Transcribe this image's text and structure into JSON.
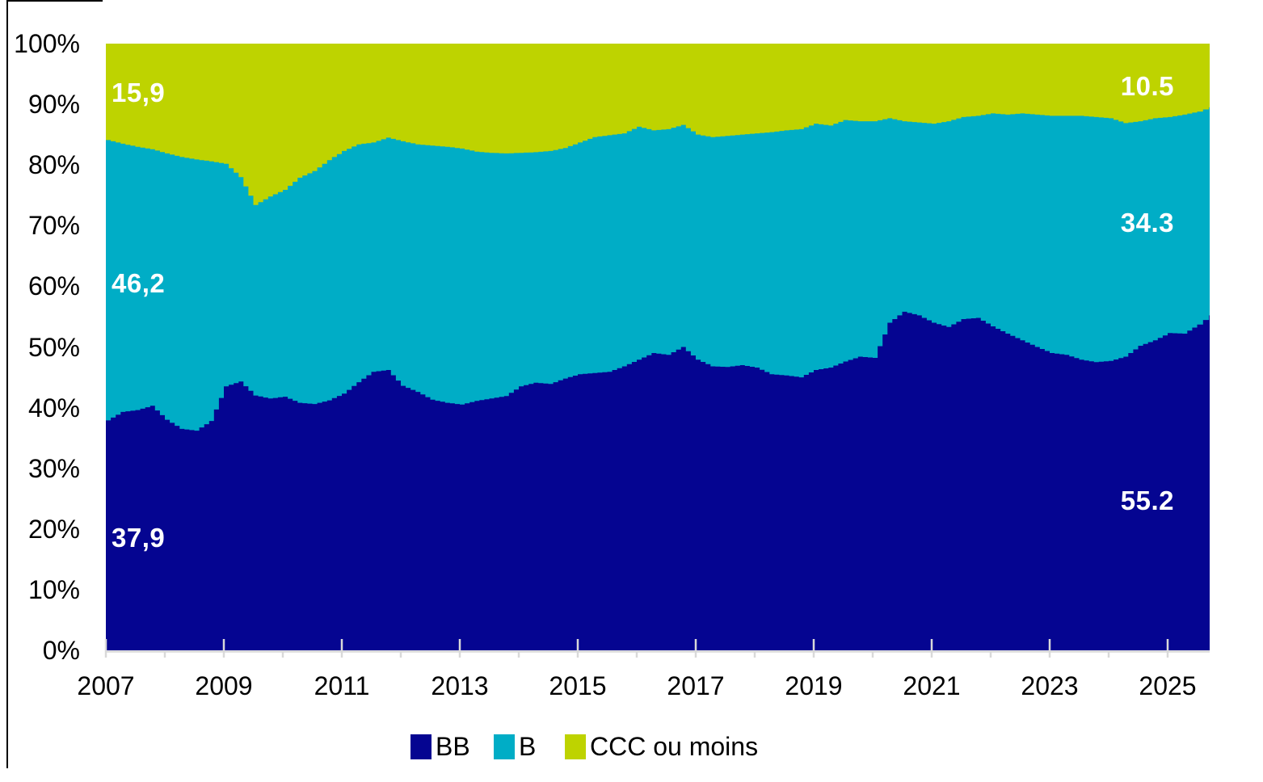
{
  "figure": {
    "background": "#FFFFFF",
    "border_color": "#000000",
    "axis_line_color": "#D9D9D9",
    "text_color": "#000000",
    "value_label_color": "#FFFFFF"
  },
  "chart_data": {
    "type": "area",
    "variant": "100-percent-stacked-step-area",
    "title": "",
    "xlabel": "",
    "ylabel": "",
    "grid": "off",
    "x_range": [
      2007,
      2025.7
    ],
    "ylim": [
      0,
      100
    ],
    "x_axis": {
      "tick_years": [
        2007,
        2008,
        2009,
        2010,
        2011,
        2012,
        2013,
        2014,
        2015,
        2016,
        2017,
        2018,
        2019,
        2020,
        2021,
        2022,
        2023,
        2024,
        2025
      ],
      "labeled_years": [
        2007,
        2009,
        2011,
        2013,
        2015,
        2017,
        2019,
        2021,
        2023,
        2025
      ],
      "tick_labels": [
        "2007",
        "2009",
        "2011",
        "2013",
        "2015",
        "2017",
        "2019",
        "2021",
        "2023",
        "2025"
      ]
    },
    "y_axis": {
      "tick_labels": [
        "0%",
        "10%",
        "20%",
        "30%",
        "40%",
        "50%",
        "60%",
        "70%",
        "80%",
        "90%",
        "100%"
      ],
      "tick_values": [
        0,
        10,
        20,
        30,
        40,
        50,
        60,
        70,
        80,
        90,
        100
      ]
    },
    "legend": {
      "position": "bottom",
      "entries": [
        {
          "label": "BB",
          "color": "#050591"
        },
        {
          "label": "B",
          "color": "#00ADC6"
        },
        {
          "label": "CCC ou moins",
          "color": "#BED300"
        }
      ]
    },
    "annotations": {
      "left": [
        {
          "text": "15,9",
          "series": "CCC ou moins"
        },
        {
          "text": "46,2",
          "series": "B"
        },
        {
          "text": "37,9",
          "series": "BB"
        }
      ],
      "right": [
        {
          "text": "10.5",
          "series": "CCC ou moins"
        },
        {
          "text": "34.3",
          "series": "B"
        },
        {
          "text": "55.2",
          "series": "BB"
        }
      ]
    },
    "x": [
      2007.0,
      2007.25,
      2007.5,
      2007.75,
      2008.0,
      2008.25,
      2008.5,
      2008.75,
      2009.0,
      2009.25,
      2009.5,
      2009.75,
      2010.0,
      2010.25,
      2010.5,
      2010.75,
      2011.0,
      2011.25,
      2011.5,
      2011.75,
      2012.0,
      2012.25,
      2012.5,
      2012.75,
      2013.0,
      2013.25,
      2013.5,
      2013.75,
      2014.0,
      2014.25,
      2014.5,
      2014.75,
      2015.0,
      2015.25,
      2015.5,
      2015.75,
      2016.0,
      2016.25,
      2016.5,
      2016.75,
      2017.0,
      2017.25,
      2017.5,
      2017.75,
      2018.0,
      2018.25,
      2018.5,
      2018.75,
      2019.0,
      2019.25,
      2019.5,
      2019.75,
      2020.0,
      2020.25,
      2020.5,
      2020.75,
      2021.0,
      2021.25,
      2021.5,
      2021.75,
      2022.0,
      2022.25,
      2022.5,
      2022.75,
      2023.0,
      2023.25,
      2023.5,
      2023.75,
      2024.0,
      2024.25,
      2024.5,
      2024.75,
      2025.0,
      2025.25,
      2025.5,
      2025.7
    ],
    "series": [
      {
        "name": "BB",
        "color": "#050591",
        "values": [
          37.9,
          39.3,
          39.6,
          40.3,
          38.0,
          36.5,
          36.2,
          37.8,
          43.5,
          44.3,
          42.0,
          41.5,
          41.8,
          40.8,
          40.6,
          41.2,
          42.3,
          44.2,
          45.9,
          46.2,
          43.6,
          42.6,
          41.3,
          40.8,
          40.5,
          41.1,
          41.5,
          41.9,
          43.5,
          44.1,
          43.9,
          44.8,
          45.5,
          45.7,
          45.9,
          46.8,
          47.9,
          49.0,
          48.7,
          50.0,
          47.9,
          46.8,
          46.7,
          47.0,
          46.6,
          45.5,
          45.3,
          45.0,
          46.2,
          46.6,
          47.6,
          48.4,
          48.2,
          54.0,
          55.8,
          55.2,
          54.0,
          53.3,
          54.6,
          54.8,
          53.4,
          52.2,
          51.1,
          50.0,
          49.0,
          48.7,
          47.9,
          47.5,
          47.7,
          48.4,
          50.2,
          51.1,
          52.3,
          52.2,
          53.7,
          55.2
        ]
      },
      {
        "name": "B",
        "color": "#00ADC6",
        "values": [
          46.2,
          44.2,
          43.4,
          42.3,
          43.9,
          44.8,
          44.7,
          42.8,
          36.7,
          33.7,
          31.4,
          33.3,
          34.1,
          37.1,
          38.4,
          39.6,
          40.0,
          39.2,
          37.8,
          38.3,
          40.3,
          40.8,
          41.9,
          42.2,
          42.2,
          41.1,
          40.5,
          40.0,
          38.5,
          38.0,
          38.4,
          38.0,
          38.2,
          38.9,
          39.0,
          38.4,
          38.4,
          36.7,
          37.2,
          36.6,
          37.1,
          37.8,
          38.1,
          38.0,
          38.6,
          39.9,
          40.4,
          40.9,
          40.6,
          39.9,
          39.8,
          38.8,
          39.0,
          33.7,
          31.4,
          31.8,
          32.8,
          33.9,
          33.3,
          33.3,
          35.1,
          36.1,
          37.4,
          38.3,
          39.1,
          39.4,
          40.2,
          40.4,
          40.0,
          38.5,
          37.0,
          36.6,
          35.6,
          36.1,
          35.1,
          34.3
        ]
      },
      {
        "name": "CCC ou moins",
        "color": "#BED300",
        "values": [
          15.9,
          16.5,
          17.0,
          17.4,
          18.1,
          18.7,
          19.1,
          19.4,
          19.8,
          22.0,
          26.6,
          25.2,
          24.1,
          22.1,
          21.0,
          19.2,
          17.7,
          16.6,
          16.3,
          15.5,
          16.1,
          16.6,
          16.8,
          17.0,
          17.3,
          17.8,
          18.0,
          18.1,
          18.0,
          17.9,
          17.7,
          17.2,
          16.3,
          15.4,
          15.1,
          14.8,
          13.7,
          14.3,
          14.1,
          13.4,
          15.0,
          15.4,
          15.2,
          15.0,
          14.8,
          14.6,
          14.3,
          14.1,
          13.2,
          13.5,
          12.6,
          12.8,
          12.8,
          12.3,
          12.8,
          13.0,
          13.2,
          12.8,
          12.1,
          11.9,
          11.5,
          11.7,
          11.5,
          11.7,
          11.9,
          11.9,
          11.9,
          12.1,
          12.3,
          13.1,
          12.8,
          12.3,
          12.1,
          11.7,
          11.2,
          10.5
        ]
      }
    ]
  }
}
